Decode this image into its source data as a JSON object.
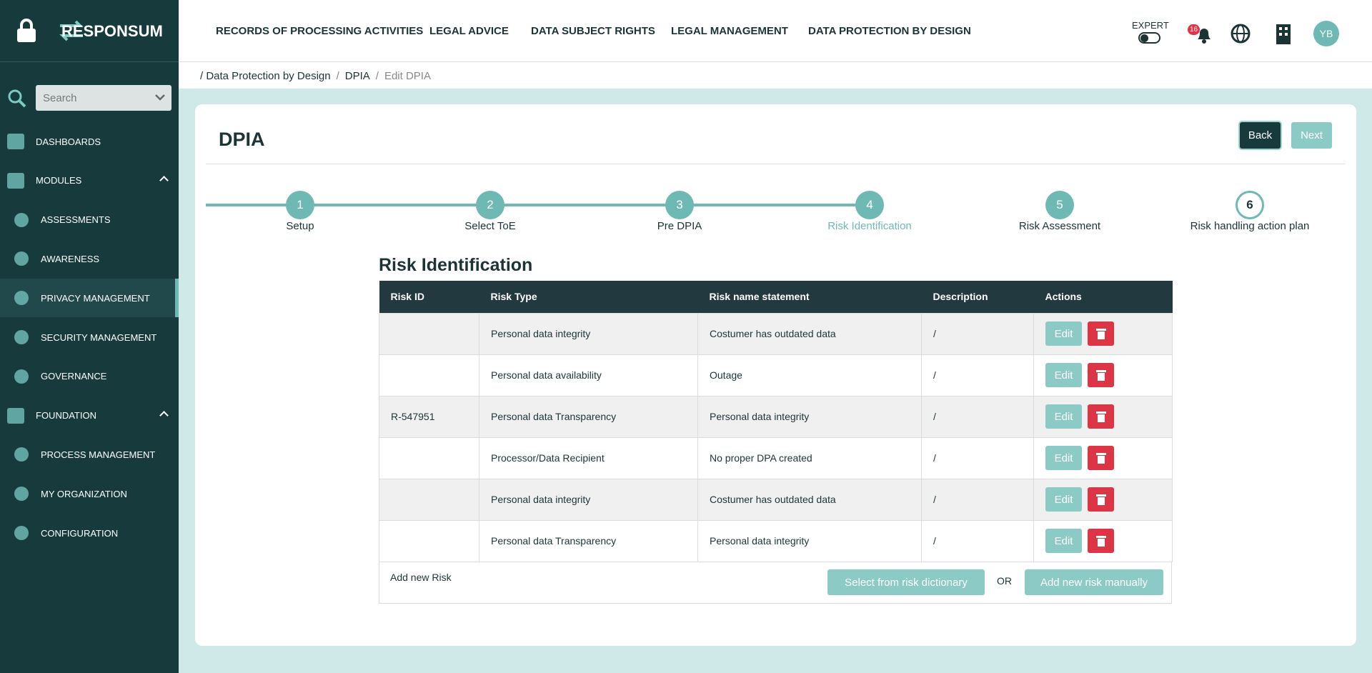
{
  "brand": "RESPONSUM",
  "sidebar": {
    "search_placeholder": "Search",
    "items": [
      {
        "label": "DASHBOARDS",
        "level": 0
      },
      {
        "label": "MODULES",
        "level": 0,
        "expanded": true
      },
      {
        "label": "ASSESSMENTS",
        "level": 1
      },
      {
        "label": "AWARENESS",
        "level": 1
      },
      {
        "label": "PRIVACY MANAGEMENT",
        "level": 1,
        "active": true
      },
      {
        "label": "SECURITY MANAGEMENT",
        "level": 1
      },
      {
        "label": "GOVERNANCE",
        "level": 1
      },
      {
        "label": "FOUNDATION",
        "level": 0,
        "expanded": true
      },
      {
        "label": "PROCESS MANAGEMENT",
        "level": 1
      },
      {
        "label": "MY ORGANIZATION",
        "level": 1
      },
      {
        "label": "CONFIGURATION",
        "level": 1
      }
    ]
  },
  "nav": [
    "RECORDS OF PROCESSING ACTIVITIES",
    "LEGAL ADVICE",
    "DATA SUBJECT RIGHTS",
    "LEGAL MANAGEMENT",
    "DATA PROTECTION BY DESIGN"
  ],
  "header": {
    "expert_label": "EXPERT",
    "notifications": 16,
    "avatar": "YB"
  },
  "breadcrumb": [
    "/ Data Protection by Design",
    "DPIA",
    "Edit DPIA"
  ],
  "page": {
    "title": "DPIA",
    "back": "Back",
    "next": "Next"
  },
  "steps": [
    {
      "number": 1,
      "label": "Setup"
    },
    {
      "number": 2,
      "label": "Select ToE"
    },
    {
      "number": 3,
      "label": "Pre DPIA"
    },
    {
      "number": 4,
      "label": "Risk Identification",
      "current": true
    },
    {
      "number": 5,
      "label": "Risk Assessment"
    },
    {
      "number": 6,
      "label": "Risk handling action plan"
    }
  ],
  "section_title": "Risk Identification",
  "table": {
    "columns": [
      "Risk ID",
      "Risk Type",
      "Risk name statement",
      "Description",
      "Actions"
    ],
    "rows": [
      [
        null,
        "Personal data integrity",
        "Costumer has outdated data",
        "/"
      ],
      [
        null,
        "Personal data availability",
        "Outage",
        "/"
      ],
      [
        "R-547951",
        "Personal data Transparency",
        "Personal data integrity",
        "/"
      ],
      [
        null,
        "Processor/Data Recipient",
        "No proper DPA created",
        "/"
      ],
      [
        null,
        "Personal data integrity",
        "Costumer has outdated data",
        "/"
      ],
      [
        null,
        "Personal data Transparency",
        "Personal data integrity",
        "/"
      ]
    ],
    "edit_label": "Edit"
  },
  "footer": {
    "add_label": "Add new Risk",
    "dictionary_button": "Select from risk dictionary",
    "or": "OR",
    "manual_button": "Add new risk manually"
  }
}
